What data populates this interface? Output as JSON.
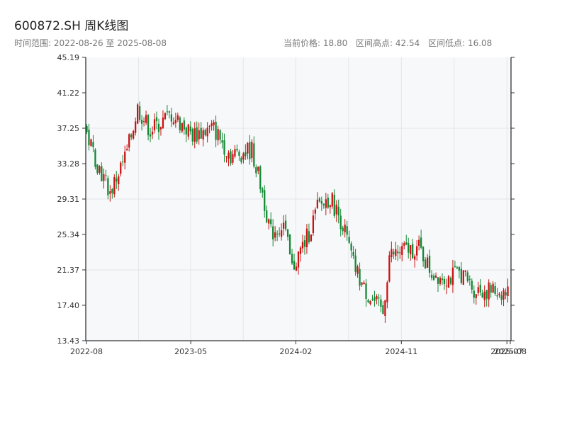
{
  "header": {
    "title": "600872.SH 周K线图",
    "subtitle_prefix": "时间范围: ",
    "date_start": "2022-08-26",
    "date_sep": " 至 ",
    "date_end": "2025-08-08",
    "current_price": "当前价格: 18.80",
    "period_high": "区间高点: 42.54",
    "period_low": "区间低点: 16.08"
  },
  "chart_data": {
    "type": "candlestick",
    "title": "600872.SH 周K线图",
    "y_ticks": [
      "13.43",
      "17.40",
      "21.37",
      "25.34",
      "29.31",
      "33.28",
      "37.25",
      "41.22",
      "45.19"
    ],
    "ylim": [
      13.43,
      45.19
    ],
    "x_ticks": [
      "2022-08",
      "2023-05",
      "2024-02",
      "2024-11",
      "2025-07",
      "2025-08"
    ],
    "grid": true,
    "colors": {
      "up": "#cc1111",
      "down": "#118833",
      "grid": "#e3e6ea",
      "bg": "#f7f8fa",
      "axis": "#333333"
    },
    "summary": {
      "current": 18.8,
      "high": 42.54,
      "low": 16.08
    },
    "segments": [
      {
        "start": 37.2,
        "end": 33.3,
        "n": 6
      },
      {
        "start": 33.3,
        "end": 30.0,
        "n": 6
      },
      {
        "start": 30.0,
        "end": 34.5,
        "n": 8
      },
      {
        "start": 34.5,
        "end": 39.5,
        "n": 5
      },
      {
        "start": 39.5,
        "end": 37.0,
        "n": 6
      },
      {
        "start": 37.0,
        "end": 38.8,
        "n": 10
      },
      {
        "start": 38.8,
        "end": 36.5,
        "n": 10
      },
      {
        "start": 36.5,
        "end": 37.2,
        "n": 10
      },
      {
        "start": 37.2,
        "end": 34.2,
        "n": 8
      },
      {
        "start": 34.2,
        "end": 34.8,
        "n": 10
      },
      {
        "start": 34.8,
        "end": 30.0,
        "n": 5
      },
      {
        "start": 30.0,
        "end": 25.5,
        "n": 4
      },
      {
        "start": 25.5,
        "end": 26.5,
        "n": 6
      },
      {
        "start": 26.5,
        "end": 21.5,
        "n": 4
      },
      {
        "start": 21.5,
        "end": 25.5,
        "n": 8
      },
      {
        "start": 25.5,
        "end": 28.3,
        "n": 4
      },
      {
        "start": 28.3,
        "end": 29.5,
        "n": 6
      },
      {
        "start": 29.5,
        "end": 26.5,
        "n": 6
      },
      {
        "start": 26.5,
        "end": 22.0,
        "n": 5
      },
      {
        "start": 22.0,
        "end": 19.2,
        "n": 5
      },
      {
        "start": 19.2,
        "end": 16.5,
        "n": 9
      },
      {
        "start": 16.5,
        "end": 23.0,
        "n": 3
      },
      {
        "start": 23.0,
        "end": 23.6,
        "n": 8
      },
      {
        "start": 23.6,
        "end": 23.8,
        "n": 6
      },
      {
        "start": 23.8,
        "end": 21.0,
        "n": 6
      },
      {
        "start": 21.0,
        "end": 20.5,
        "n": 8
      },
      {
        "start": 20.5,
        "end": 21.0,
        "n": 6
      },
      {
        "start": 21.0,
        "end": 19.2,
        "n": 6
      },
      {
        "start": 19.2,
        "end": 18.8,
        "n": 16
      }
    ]
  }
}
